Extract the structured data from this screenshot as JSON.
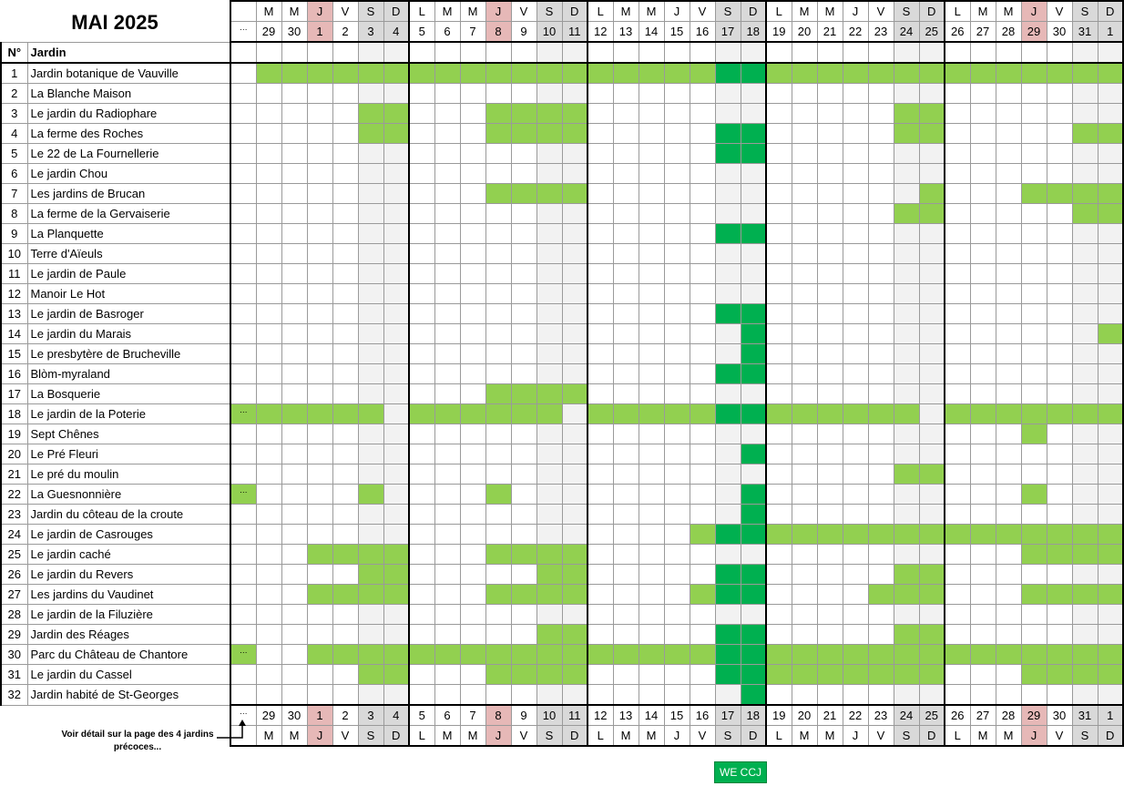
{
  "title": "MAI 2025",
  "header": {
    "number_label": "N°",
    "garden_label": "Jardin",
    "ellipsis": "…",
    "weekdays": [
      "M",
      "M",
      "J",
      "V",
      "S",
      "D",
      "L",
      "M",
      "M",
      "J",
      "V",
      "S",
      "D",
      "L",
      "M",
      "M",
      "J",
      "V",
      "S",
      "D",
      "L",
      "M",
      "M",
      "J",
      "V",
      "S",
      "D",
      "L",
      "M",
      "M",
      "J",
      "V",
      "S",
      "D"
    ],
    "dates": [
      "29",
      "30",
      "1",
      "2",
      "3",
      "4",
      "5",
      "6",
      "7",
      "8",
      "9",
      "10",
      "11",
      "12",
      "13",
      "14",
      "15",
      "16",
      "17",
      "18",
      "19",
      "20",
      "21",
      "22",
      "23",
      "24",
      "25",
      "26",
      "27",
      "28",
      "29",
      "30",
      "31",
      "1"
    ],
    "holiday_indices": [
      2,
      9,
      30
    ],
    "weekend_indices": [
      4,
      5,
      11,
      12,
      18,
      19,
      25,
      26,
      32,
      33
    ],
    "week_break_indices": [
      6,
      13,
      20,
      27
    ]
  },
  "colors": {
    "open": "#92d050",
    "we_ccj": "#00b050",
    "holiday": "#e6b8b7",
    "weekend": "#f2f2f2",
    "weekend_header": "#d9d9d9"
  },
  "gardens": [
    {
      "n": "1",
      "name": "Jardin botanique de Vauville",
      "pre": "",
      "open": "0-17,20-33",
      "ccj": "18-19"
    },
    {
      "n": "2",
      "name": "La Blanche Maison",
      "pre": "",
      "open": "",
      "ccj": ""
    },
    {
      "n": "3",
      "name": "Le jardin du Radiophare",
      "pre": "",
      "open": "4-5,9-12,25-26",
      "ccj": ""
    },
    {
      "n": "4",
      "name": "La ferme des Roches",
      "pre": "",
      "open": "4-5,9-12,25-26,32-33",
      "ccj": "18-19"
    },
    {
      "n": "5",
      "name": "Le 22 de La Fournellerie",
      "pre": "",
      "open": "",
      "ccj": "18-19"
    },
    {
      "n": "6",
      "name": "Le jardin Chou",
      "pre": "",
      "open": "",
      "ccj": ""
    },
    {
      "n": "7",
      "name": "Les jardins de Brucan",
      "pre": "",
      "open": "9-12,26,30-33",
      "ccj": ""
    },
    {
      "n": "8",
      "name": "La ferme de la Gervaiserie",
      "pre": "",
      "open": "25-26,32-33",
      "ccj": ""
    },
    {
      "n": "9",
      "name": "La Planquette",
      "pre": "",
      "open": "",
      "ccj": "18-19"
    },
    {
      "n": "10",
      "name": "Terre d'Aïeuls",
      "pre": "",
      "open": "",
      "ccj": ""
    },
    {
      "n": "11",
      "name": "Le jardin de Paule",
      "pre": "",
      "open": "",
      "ccj": ""
    },
    {
      "n": "12",
      "name": "Manoir Le Hot",
      "pre": "",
      "open": "",
      "ccj": ""
    },
    {
      "n": "13",
      "name": "Le jardin de Basroger",
      "pre": "",
      "open": "",
      "ccj": "18-19"
    },
    {
      "n": "14",
      "name": "Le jardin du Marais",
      "pre": "",
      "open": "33",
      "ccj": "19"
    },
    {
      "n": "15",
      "name": "Le presbytère de Brucheville",
      "pre": "",
      "open": "",
      "ccj": "19"
    },
    {
      "n": "16",
      "name": "Blòm-myraland",
      "pre": "",
      "open": "",
      "ccj": "18-19"
    },
    {
      "n": "17",
      "name": "La Bosquerie",
      "pre": "",
      "open": "9-12",
      "ccj": ""
    },
    {
      "n": "18",
      "name": "Le jardin de la Poterie",
      "pre": "…",
      "open": "0-4,6-11,13-17,20-25,27-33",
      "ccj": "18-19"
    },
    {
      "n": "19",
      "name": "Sept Chênes",
      "pre": "",
      "open": "30",
      "ccj": ""
    },
    {
      "n": "20",
      "name": "Le Pré Fleuri",
      "pre": "",
      "open": "",
      "ccj": "19"
    },
    {
      "n": "21",
      "name": "Le pré du moulin",
      "pre": "",
      "open": "25-26",
      "ccj": ""
    },
    {
      "n": "22",
      "name": "La Guesnonnière",
      "pre": "…",
      "open": "4,9,30",
      "ccj": "19"
    },
    {
      "n": "23",
      "name": "Jardin du côteau de la croute",
      "pre": "",
      "open": "",
      "ccj": "19"
    },
    {
      "n": "24",
      "name": "Le jardin de Casrouges",
      "pre": "",
      "open": "17,20-33",
      "ccj": "18-19"
    },
    {
      "n": "25",
      "name": "Le jardin caché",
      "pre": "",
      "open": "2-5,9-12,30-33",
      "ccj": ""
    },
    {
      "n": "26",
      "name": "Le jardin du Revers",
      "pre": "",
      "open": "4-5,11-12,25-26",
      "ccj": "18-19"
    },
    {
      "n": "27",
      "name": "Les jardins du Vaudinet",
      "pre": "",
      "open": "2-5,9-12,17,24-26,30-33",
      "ccj": "18-19"
    },
    {
      "n": "28",
      "name": "Le jardin de la Filuzière",
      "pre": "",
      "open": "",
      "ccj": ""
    },
    {
      "n": "29",
      "name": "Jardin des Réages",
      "pre": "",
      "open": "11-12,25-26",
      "ccj": "18-19"
    },
    {
      "n": "30",
      "name": "Parc du Château de Chantore",
      "pre": "…",
      "open": "2-17,20-33",
      "ccj": "18-19"
    },
    {
      "n": "31",
      "name": "Le jardin du Cassel",
      "pre": "",
      "open": "4-5,9-12,20-26,30-33",
      "ccj": "18-19"
    },
    {
      "n": "32",
      "name": "Jardin habité de St-Georges",
      "pre": "",
      "open": "",
      "ccj": "19"
    }
  ],
  "note": "Voir détail sur la page des 4 jardins précoces...",
  "legend": {
    "label": "WE CCJ"
  }
}
